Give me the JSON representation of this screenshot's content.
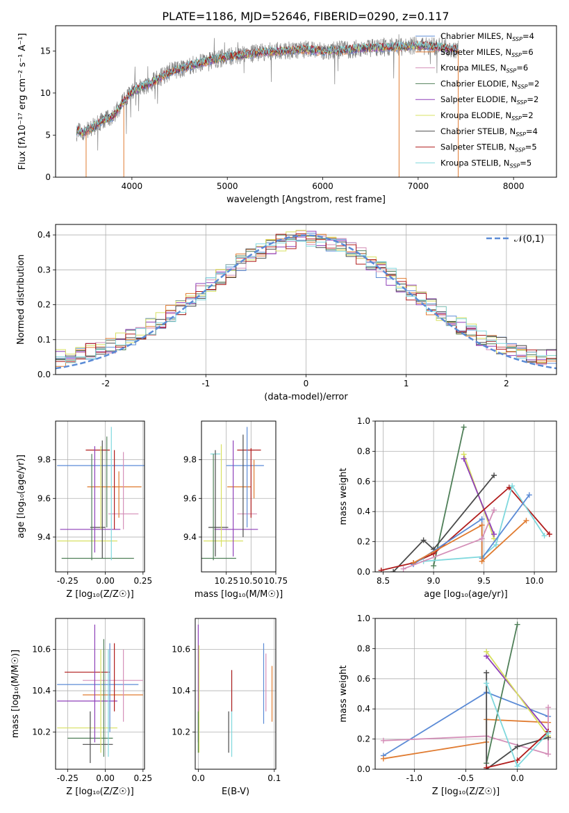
{
  "figure": {
    "title": "PLATE=1186, MJD=52646, FIBERID=0290, z=0.117",
    "colors": {
      "chabrier_miles": "#5b8bd6",
      "salpeter_miles": "#e07b30",
      "kroupa_miles": "#d48fb8",
      "chabrier_elodie": "#4f7f58",
      "salpeter_elodie": "#8e3fb8",
      "kroupa_elodie": "#d8e060",
      "chabrier_stelib": "#4a4a4a",
      "salpeter_stelib": "#b01c1c",
      "kroupa_stelib": "#7fd8dd"
    }
  },
  "chart_data": [
    {
      "id": "spectrum",
      "type": "line",
      "xlabel": "wavelength [Angstrom, rest frame]",
      "ylabel": "Flux [fλ10⁻¹⁷ erg cm⁻² s⁻¹ A⁻¹]",
      "xlim": [
        3200,
        8450
      ],
      "ylim": [
        0,
        18
      ],
      "xticks": [
        4000,
        5000,
        6000,
        7000,
        8000
      ],
      "yticks": [
        0,
        5,
        10,
        15
      ],
      "grid": false,
      "legend_position": "right",
      "legend": [
        {
          "label": "Chabrier MILES, N",
          "sub": "SSP",
          "tail": "=4",
          "color": "#5b8bd6"
        },
        {
          "label": "Salpeter MILES, N",
          "sub": "SSP",
          "tail": "=6",
          "color": "#e07b30"
        },
        {
          "label": "Kroupa MILES, N",
          "sub": "SSP",
          "tail": "=6",
          "color": "#d48fb8"
        },
        {
          "label": "Chabrier ELODIE, N",
          "sub": "SSP",
          "tail": "=2",
          "color": "#4f7f58"
        },
        {
          "label": "Salpeter ELODIE, N",
          "sub": "SSP",
          "tail": "=2",
          "color": "#8e3fb8"
        },
        {
          "label": "Kroupa ELODIE, N",
          "sub": "SSP",
          "tail": "=2",
          "color": "#d8e060"
        },
        {
          "label": "Chabrier STELIB, N",
          "sub": "SSP",
          "tail": "=4",
          "color": "#4a4a4a"
        },
        {
          "label": "Salpeter STELIB, N",
          "sub": "SSP",
          "tail": "=5",
          "color": "#b01c1c"
        },
        {
          "label": "Kroupa STELIB, N",
          "sub": "SSP",
          "tail": "=5",
          "color": "#7fd8dd"
        }
      ],
      "data_color": "#808080",
      "continuum": {
        "x": [
          3400,
          3500,
          3600,
          3700,
          3800,
          3900,
          4000,
          4200,
          4400,
          4600,
          4800,
          5000,
          5200,
          5400,
          5600,
          5800,
          6000,
          6200,
          6400,
          6600,
          6800,
          7000,
          7200,
          7400
        ],
        "y": [
          5.6,
          5.3,
          6.0,
          6.8,
          7.2,
          8.8,
          10.2,
          11.2,
          12.5,
          13.2,
          13.8,
          14.3,
          14.6,
          14.9,
          15.0,
          15.2,
          15.0,
          15.1,
          15.3,
          15.4,
          15.5,
          15.6,
          15.5,
          15.2
        ]
      }
    },
    {
      "id": "residuals",
      "type": "histogram",
      "xlabel": "(data-model)/error",
      "ylabel": "Normed distribution",
      "xlim": [
        -2.5,
        2.5
      ],
      "ylim": [
        0,
        0.43
      ],
      "xticks": [
        -2,
        -1,
        0,
        1,
        2
      ],
      "yticks": [
        0.0,
        0.1,
        0.2,
        0.3,
        0.4
      ],
      "grid": true,
      "legend_position": "top-right",
      "gaussian_label": "𝒩(0,1)",
      "gaussian_color": "#5b8bd6"
    },
    {
      "id": "z_vs_age",
      "type": "scatter",
      "xlabel": "Z [log₁₀(Z/Z☉)]",
      "ylabel": "age [log₁₀(age/yr)]",
      "xlim": [
        -0.33,
        0.26
      ],
      "ylim": [
        9.22,
        10.0
      ],
      "xticks": [
        -0.25,
        0.0,
        0.25
      ],
      "yticks": [
        9.4,
        9.6,
        9.8
      ],
      "grid": true,
      "points": [
        {
          "x": 0.0,
          "y": 9.77,
          "xerr": 0.32,
          "yerr": 0.0,
          "color": "#5b8bd6"
        },
        {
          "x": 0.06,
          "y": 9.66,
          "xerr": 0.18,
          "yerr": 0.0,
          "color": "#e07b30"
        },
        {
          "x": 0.12,
          "y": 9.52,
          "xerr": 0.1,
          "yerr": 0.0,
          "color": "#d48fb8"
        },
        {
          "x": -0.05,
          "y": 9.29,
          "xerr": 0.24,
          "yerr": 0.0,
          "color": "#4f7f58"
        },
        {
          "x": -0.1,
          "y": 9.44,
          "xerr": 0.2,
          "yerr": 0.0,
          "color": "#8e3fb8"
        },
        {
          "x": -0.12,
          "y": 9.38,
          "xerr": 0.2,
          "yerr": 0.0,
          "color": "#d8e060"
        },
        {
          "x": -0.05,
          "y": 9.45,
          "xerr": 0.05,
          "yerr": 0.0,
          "color": "#4a4a4a"
        },
        {
          "x": -0.05,
          "y": 9.85,
          "xerr": 0.08,
          "yerr": 0.0,
          "color": "#b01c1c"
        },
        {
          "x": 0.05,
          "y": 9.85,
          "xerr": 0.0,
          "yerr": 0.0,
          "color": "#7fd8dd"
        }
      ],
      "vbars": [
        {
          "x": -0.09,
          "y0": 9.28,
          "y1": 9.83,
          "color": "#4f7f58"
        },
        {
          "x": -0.07,
          "y0": 9.32,
          "y1": 9.87,
          "color": "#8e3fb8"
        },
        {
          "x": -0.03,
          "y0": 9.44,
          "y1": 9.87,
          "color": "#d8e060"
        },
        {
          "x": -0.02,
          "y0": 9.29,
          "y1": 9.9,
          "color": "#4a4a4a"
        },
        {
          "x": 0.01,
          "y0": 9.45,
          "y1": 9.92,
          "color": "#4f7f58"
        },
        {
          "x": 0.04,
          "y0": 9.28,
          "y1": 9.97,
          "color": "#7fd8dd"
        },
        {
          "x": 0.06,
          "y0": 9.44,
          "y1": 9.85,
          "color": "#b01c1c"
        },
        {
          "x": 0.12,
          "y0": 9.44,
          "y1": 9.84,
          "color": "#d48fb8"
        },
        {
          "x": 0.09,
          "y0": 9.5,
          "y1": 9.74,
          "color": "#e07b30"
        }
      ]
    },
    {
      "id": "mass_vs_age",
      "type": "scatter",
      "xlabel": "mass [log₁₀(M/M☉)]",
      "ylabel": "",
      "xlim": [
        10.0,
        10.75
      ],
      "ylim": [
        9.22,
        10.0
      ],
      "xticks": [
        10.25,
        10.5,
        10.75
      ],
      "yticks": [
        9.4,
        9.6,
        9.8
      ],
      "grid": true,
      "points": [
        {
          "x": 10.44,
          "y": 9.77,
          "xerr": 0.19,
          "color": "#5b8bd6"
        },
        {
          "x": 10.38,
          "y": 9.66,
          "xerr": 0.12,
          "color": "#e07b30"
        },
        {
          "x": 10.46,
          "y": 9.52,
          "xerr": 0.1,
          "color": "#d48fb8"
        },
        {
          "x": 10.15,
          "y": 9.29,
          "xerr": 0.2,
          "color": "#4f7f58"
        },
        {
          "x": 10.35,
          "y": 9.44,
          "xerr": 0.22,
          "color": "#8e3fb8"
        },
        {
          "x": 10.22,
          "y": 9.38,
          "xerr": 0.2,
          "color": "#d8e060"
        },
        {
          "x": 10.17,
          "y": 9.45,
          "xerr": 0.1,
          "color": "#4a4a4a"
        },
        {
          "x": 10.48,
          "y": 9.85,
          "xerr": 0.12,
          "color": "#b01c1c"
        },
        {
          "x": 10.14,
          "y": 9.83,
          "xerr": 0.05,
          "color": "#7fd8dd"
        }
      ],
      "vbars": [
        {
          "x": 10.12,
          "y0": 9.28,
          "y1": 9.83,
          "color": "#4f7f58"
        },
        {
          "x": 10.14,
          "y0": 9.3,
          "y1": 9.85,
          "color": "#4a4a4a"
        },
        {
          "x": 10.2,
          "y0": 9.35,
          "y1": 9.88,
          "color": "#d8e060"
        },
        {
          "x": 10.32,
          "y0": 9.3,
          "y1": 9.9,
          "color": "#8e3fb8"
        },
        {
          "x": 10.42,
          "y0": 9.4,
          "y1": 9.93,
          "color": "#4a4a4a"
        },
        {
          "x": 10.46,
          "y0": 9.45,
          "y1": 9.97,
          "color": "#5b8bd6"
        },
        {
          "x": 10.5,
          "y0": 9.5,
          "y1": 9.86,
          "color": "#b01c1c"
        },
        {
          "x": 10.53,
          "y0": 9.6,
          "y1": 9.8,
          "color": "#e07b30"
        }
      ]
    },
    {
      "id": "age_vs_weight",
      "type": "line",
      "xlabel": "age [log₁₀(age/yr)]",
      "ylabel": "mass weight",
      "xlim": [
        8.42,
        10.22
      ],
      "ylim": [
        0,
        1.0
      ],
      "xticks": [
        8.5,
        9.0,
        9.5,
        10.0
      ],
      "yticks": [
        0.0,
        0.2,
        0.4,
        0.6,
        0.8,
        1.0
      ],
      "grid": true,
      "series": [
        {
          "color": "#4f7f58",
          "x": [
            9.0,
            9.3
          ],
          "y": [
            0.04,
            0.96
          ]
        },
        {
          "color": "#d8e060",
          "x": [
            9.3,
            9.6
          ],
          "y": [
            0.78,
            0.22
          ]
        },
        {
          "color": "#8e3fb8",
          "x": [
            9.3,
            9.6
          ],
          "y": [
            0.75,
            0.25
          ]
        },
        {
          "color": "#4a4a4a",
          "x": [
            8.6,
            8.9,
            9.0,
            9.6
          ],
          "y": [
            0.0,
            0.21,
            0.15,
            0.64
          ]
        },
        {
          "color": "#b01c1c",
          "x": [
            8.48,
            8.8,
            9.0,
            9.75,
            10.15
          ],
          "y": [
            0.01,
            0.06,
            0.12,
            0.56,
            0.25
          ]
        },
        {
          "color": "#7fd8dd",
          "x": [
            8.9,
            9.48,
            9.62,
            9.78,
            10.1
          ],
          "y": [
            0.07,
            0.1,
            0.18,
            0.57,
            0.24
          ]
        },
        {
          "color": "#5b8bd6",
          "x": [
            8.8,
            9.48,
            9.48,
            9.95
          ],
          "y": [
            0.05,
            0.35,
            0.09,
            0.51
          ]
        },
        {
          "color": "#e07b30",
          "x": [
            8.8,
            9.48,
            9.48,
            9.92
          ],
          "y": [
            0.06,
            0.31,
            0.07,
            0.34
          ]
        },
        {
          "color": "#d48fb8",
          "x": [
            8.7,
            9.48,
            9.6
          ],
          "y": [
            0.02,
            0.22,
            0.41
          ]
        }
      ]
    },
    {
      "id": "z_vs_mass",
      "type": "scatter",
      "xlabel": "Z [log₁₀(Z/Z☉)]",
      "ylabel": "mass [log₁₀(M/M☉)]",
      "xlim": [
        -0.33,
        0.26
      ],
      "ylim": [
        10.02,
        10.75
      ],
      "xticks": [
        -0.25,
        0.0,
        0.25
      ],
      "yticks": [
        10.2,
        10.4,
        10.6
      ],
      "grid": true,
      "points": [
        {
          "x": -0.05,
          "y": 10.43,
          "xerr": 0.27,
          "color": "#5b8bd6"
        },
        {
          "x": 0.05,
          "y": 10.38,
          "xerr": 0.2,
          "color": "#e07b30"
        },
        {
          "x": 0.05,
          "y": 10.45,
          "xerr": 0.2,
          "color": "#d48fb8"
        },
        {
          "x": -0.1,
          "y": 10.17,
          "xerr": 0.15,
          "color": "#4f7f58"
        },
        {
          "x": -0.12,
          "y": 10.35,
          "xerr": 0.2,
          "color": "#8e3fb8"
        },
        {
          "x": -0.12,
          "y": 10.22,
          "xerr": 0.2,
          "color": "#d8e060"
        },
        {
          "x": -0.05,
          "y": 10.14,
          "xerr": 0.1,
          "color": "#4a4a4a"
        },
        {
          "x": -0.12,
          "y": 10.49,
          "xerr": 0.15,
          "color": "#b01c1c"
        },
        {
          "x": 0.01,
          "y": 10.22,
          "xerr": 0.0,
          "color": "#7fd8dd"
        }
      ],
      "vbars": [
        {
          "x": -0.1,
          "y0": 10.05,
          "y1": 10.3,
          "color": "#4a4a4a"
        },
        {
          "x": -0.07,
          "y0": 10.15,
          "y1": 10.72,
          "color": "#8e3fb8"
        },
        {
          "x": -0.03,
          "y0": 10.1,
          "y1": 10.6,
          "color": "#d8e060"
        },
        {
          "x": -0.01,
          "y0": 10.08,
          "y1": 10.65,
          "color": "#4f7f58"
        },
        {
          "x": 0.03,
          "y0": 10.2,
          "y1": 10.63,
          "color": "#5b8bd6"
        },
        {
          "x": 0.02,
          "y0": 10.08,
          "y1": 10.6,
          "color": "#7fd8dd"
        },
        {
          "x": 0.06,
          "y0": 10.3,
          "y1": 10.63,
          "color": "#b01c1c"
        },
        {
          "x": 0.12,
          "y0": 10.25,
          "y1": 10.6,
          "color": "#d48fb8"
        }
      ]
    },
    {
      "id": "ebv_vs_mass",
      "type": "scatter",
      "xlabel": "E(B-V)",
      "ylabel": "",
      "xlim": [
        -0.004,
        0.102
      ],
      "ylim": [
        10.02,
        10.75
      ],
      "xticks": [
        0.0,
        0.1
      ],
      "yticks": [
        10.2,
        10.4,
        10.6
      ],
      "grid": true,
      "vbars": [
        {
          "x": 0.0,
          "y0": 10.15,
          "y1": 10.72,
          "color": "#8e3fb8"
        },
        {
          "x": 0.001,
          "y0": 10.1,
          "y1": 10.62,
          "color": "#d8e060"
        },
        {
          "x": 0.0,
          "y0": 10.1,
          "y1": 10.3,
          "color": "#4f7f58"
        },
        {
          "x": 0.04,
          "y0": 10.1,
          "y1": 10.3,
          "color": "#4a4a4a"
        },
        {
          "x": 0.044,
          "y0": 10.08,
          "y1": 10.5,
          "color": "#7fd8dd"
        },
        {
          "x": 0.044,
          "y0": 10.3,
          "y1": 10.5,
          "color": "#b01c1c"
        },
        {
          "x": 0.086,
          "y0": 10.24,
          "y1": 10.63,
          "color": "#5b8bd6"
        },
        {
          "x": 0.089,
          "y0": 10.3,
          "y1": 10.58,
          "color": "#d48fb8"
        },
        {
          "x": 0.097,
          "y0": 10.25,
          "y1": 10.52,
          "color": "#e07b30"
        }
      ]
    },
    {
      "id": "z_vs_weight",
      "type": "line",
      "xlabel": "Z [log₁₀(Z/Z☉)]",
      "ylabel": "mass weight",
      "xlim": [
        -1.38,
        0.38
      ],
      "ylim": [
        0,
        1.0
      ],
      "xticks": [
        -1.0,
        -0.5,
        0.0
      ],
      "yticks": [
        0.0,
        0.2,
        0.4,
        0.6,
        0.8,
        1.0
      ],
      "grid": true,
      "series": [
        {
          "color": "#5b8bd6",
          "x": [
            -1.3,
            -0.3,
            0.3
          ],
          "y": [
            0.09,
            0.51,
            0.35
          ]
        },
        {
          "color": "#e07b30",
          "x": [
            -1.3,
            -0.3,
            -0.3,
            0.3
          ],
          "y": [
            0.07,
            0.18,
            0.33,
            0.31
          ]
        },
        {
          "color": "#d48fb8",
          "x": [
            -1.3,
            -0.3,
            0.3,
            0.3
          ],
          "y": [
            0.19,
            0.22,
            0.1,
            0.41
          ]
        },
        {
          "color": "#4f7f58",
          "x": [
            -0.3,
            0.0
          ],
          "y": [
            0.04,
            0.96
          ]
        },
        {
          "color": "#8e3fb8",
          "x": [
            -0.3,
            0.3
          ],
          "y": [
            0.75,
            0.25
          ]
        },
        {
          "color": "#d8e060",
          "x": [
            -0.3,
            0.3
          ],
          "y": [
            0.78,
            0.22
          ]
        },
        {
          "color": "#4a4a4a",
          "x": [
            -0.3,
            -0.3,
            0.0,
            0.3
          ],
          "y": [
            0.64,
            0.0,
            0.15,
            0.21
          ]
        },
        {
          "color": "#b01c1c",
          "x": [
            -0.3,
            0.0,
            0.3
          ],
          "y": [
            0.01,
            0.06,
            0.25
          ]
        },
        {
          "color": "#7fd8dd",
          "x": [
            -0.3,
            0.0,
            0.3
          ],
          "y": [
            0.57,
            0.02,
            0.24
          ]
        }
      ]
    }
  ]
}
